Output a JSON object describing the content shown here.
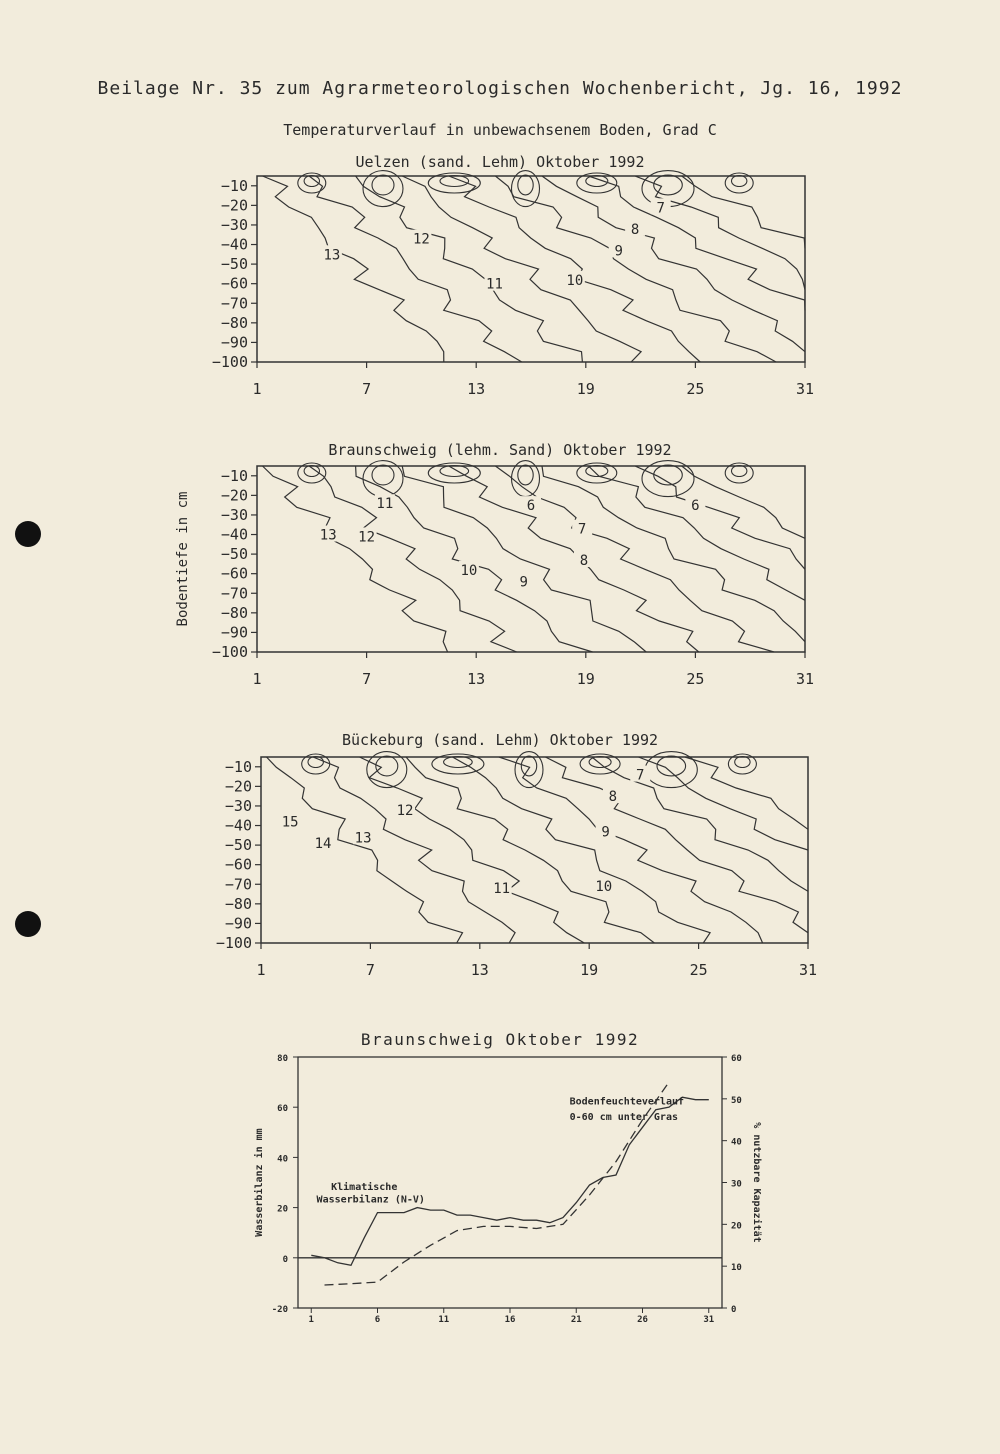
{
  "header": "Beilage Nr. 35 zum Agrarmeteorologischen Wochenbericht, Jg. 16, 1992",
  "subtitle": "Temperaturverlauf in unbewachsenem Boden, Grad C",
  "chart_data": [
    {
      "type": "contour",
      "title": "Uelzen (sand. Lehm) Oktober 1992",
      "ylabel": "",
      "x_ticks": [
        "1",
        "7",
        "13",
        "19",
        "25",
        "31"
      ],
      "y_ticks": [
        "-10",
        "-20",
        "-30",
        "-40",
        "-50",
        "-60",
        "-70",
        "-80",
        "-90",
        "-100"
      ],
      "xlim": [
        1,
        31
      ],
      "ylim": [
        -100,
        -5
      ],
      "contour_labels": [
        {
          "value": "13",
          "x": 5.1,
          "y": -45
        },
        {
          "value": "12",
          "x": 10.0,
          "y": -37
        },
        {
          "value": "11",
          "x": 14.0,
          "y": -60
        },
        {
          "value": "10",
          "x": 18.4,
          "y": -58
        },
        {
          "value": "9",
          "x": 20.8,
          "y": -43
        },
        {
          "value": "8",
          "x": 21.7,
          "y": -32
        },
        {
          "value": "7",
          "x": 23.1,
          "y": -21
        }
      ]
    },
    {
      "type": "contour",
      "title": "Braunschweig (lehm. Sand) Oktober 1992",
      "ylabel": "Bodentiefe in cm",
      "x_ticks": [
        "1",
        "7",
        "13",
        "19",
        "25",
        "31"
      ],
      "y_ticks": [
        "-10",
        "-20",
        "-30",
        "-40",
        "-50",
        "-60",
        "-70",
        "-80",
        "-90",
        "-100"
      ],
      "xlim": [
        1,
        31
      ],
      "ylim": [
        -100,
        -5
      ],
      "contour_labels": [
        {
          "value": "13",
          "x": 4.9,
          "y": -40
        },
        {
          "value": "12",
          "x": 7.0,
          "y": -41
        },
        {
          "value": "11",
          "x": 8.0,
          "y": -24
        },
        {
          "value": "10",
          "x": 12.6,
          "y": -58
        },
        {
          "value": "9",
          "x": 15.6,
          "y": -64
        },
        {
          "value": "8",
          "x": 18.9,
          "y": -53
        },
        {
          "value": "7",
          "x": 18.8,
          "y": -37
        },
        {
          "value": "6",
          "x": 16.0,
          "y": -25
        },
        {
          "value": "6",
          "x": 25.0,
          "y": -25
        }
      ]
    },
    {
      "type": "contour",
      "title": "Bückeburg (sand. Lehm) Oktober 1992",
      "ylabel": "",
      "x_ticks": [
        "1",
        "7",
        "13",
        "19",
        "25",
        "31"
      ],
      "y_ticks": [
        "-10",
        "-20",
        "-30",
        "-40",
        "-50",
        "-60",
        "-70",
        "-80",
        "-90",
        "-100"
      ],
      "xlim": [
        1,
        31
      ],
      "ylim": [
        -100,
        -5
      ],
      "contour_labels": [
        {
          "value": "15",
          "x": 2.6,
          "y": -38
        },
        {
          "value": "14",
          "x": 4.4,
          "y": -49
        },
        {
          "value": "13",
          "x": 6.6,
          "y": -46
        },
        {
          "value": "12",
          "x": 8.9,
          "y": -32
        },
        {
          "value": "11",
          "x": 14.2,
          "y": -72
        },
        {
          "value": "10",
          "x": 19.8,
          "y": -71
        },
        {
          "value": "9",
          "x": 19.9,
          "y": -43
        },
        {
          "value": "8",
          "x": 20.3,
          "y": -25
        },
        {
          "value": "7",
          "x": 21.8,
          "y": -14
        }
      ]
    },
    {
      "type": "line",
      "title": "Braunschweig Oktober 1992",
      "ylabel": "Wasserbilanz in mm",
      "y2label": "% nutzbare Kapazität",
      "x_ticks": [
        "1",
        "6",
        "11",
        "16",
        "21",
        "26",
        "31"
      ],
      "y_ticks": [
        "-20",
        "0",
        "20",
        "40",
        "60",
        "80"
      ],
      "y2_ticks": [
        "0",
        "10",
        "20",
        "30",
        "40",
        "50",
        "60"
      ],
      "xlim": [
        0,
        32
      ],
      "ylim": [
        -20,
        80
      ],
      "y2lim": [
        0,
        60
      ],
      "series": [
        {
          "name": "Klimatische Wasserbilanz (N-V)",
          "axis": "left",
          "style": "solid",
          "x": [
            1,
            2,
            3,
            4,
            5,
            6,
            7,
            8,
            9,
            10,
            11,
            12,
            13,
            14,
            15,
            16,
            17,
            18,
            19,
            20,
            21,
            22,
            23,
            24,
            25,
            26,
            27,
            28,
            29,
            30,
            31
          ],
          "values": [
            1,
            0,
            -2,
            -3,
            8,
            18,
            18,
            18,
            20,
            19,
            19,
            17,
            17,
            16,
            15,
            16,
            15,
            15,
            14,
            16,
            22,
            29,
            32,
            33,
            45,
            52,
            59,
            60,
            64,
            63,
            63
          ]
        },
        {
          "name": "Bodenfeuchteverlauf 0-60 cm unter Gras",
          "axis": "right",
          "style": "dashed",
          "x": [
            2,
            4,
            6,
            8,
            10,
            12,
            14,
            16,
            18,
            20,
            22,
            24,
            26,
            28
          ],
          "values": [
            5.5,
            5.8,
            6.2,
            11,
            15,
            18.5,
            19.5,
            19.5,
            19,
            20,
            27,
            35,
            45,
            54
          ]
        }
      ],
      "annotations": [
        {
          "text": "Klimatische",
          "x": 2.5,
          "y": 27
        },
        {
          "text": "Wasserbilanz (N-V)",
          "x": 1.4,
          "y": 22
        },
        {
          "text": "Bodenfeuchteverlauf",
          "x": 20.5,
          "y": 61
        },
        {
          "text": "0-60 cm unter Gras",
          "x": 20.5,
          "y": 55
        }
      ]
    }
  ]
}
